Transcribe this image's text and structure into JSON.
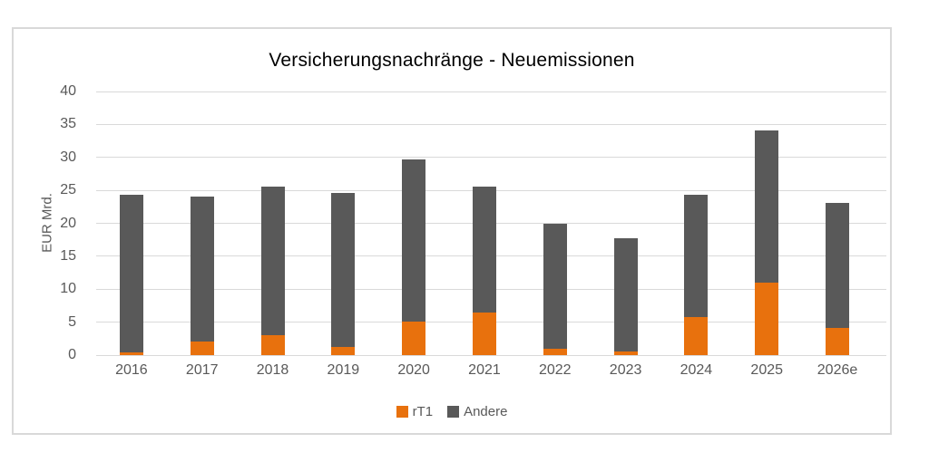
{
  "chart_data": {
    "type": "bar",
    "stacked": true,
    "title": "Versicherungsnachränge - Neuemissionen",
    "ylabel": "EUR Mrd.",
    "xlabel": "",
    "categories": [
      "2016",
      "2017",
      "2018",
      "2019",
      "2020",
      "2021",
      "2022",
      "2023",
      "2024",
      "2025",
      "2026e"
    ],
    "series": [
      {
        "name": "rT1",
        "color": "#E8710D",
        "values": [
          0.4,
          2.0,
          3.0,
          1.3,
          5.1,
          6.5,
          1.0,
          0.6,
          5.8,
          11.0,
          4.1
        ]
      },
      {
        "name": "Andere",
        "color": "#595959",
        "values": [
          24.0,
          22.0,
          22.6,
          23.3,
          24.6,
          19.1,
          18.9,
          17.2,
          18.5,
          23.1,
          19.0
        ]
      }
    ],
    "totals": [
      24.4,
      24.0,
      25.6,
      24.6,
      29.7,
      25.6,
      19.9,
      17.8,
      24.3,
      34.1,
      23.1
    ],
    "ylim": [
      0,
      40
    ],
    "yticks": [
      0,
      5,
      10,
      15,
      20,
      25,
      30,
      35,
      40
    ],
    "grid": true,
    "legend_position": "bottom",
    "colors": {
      "gridline": "#D9D9D9",
      "axis_text": "#595959",
      "title_text": "#000000",
      "frame_border": "#D9D9D9",
      "background": "#FFFFFF"
    }
  }
}
